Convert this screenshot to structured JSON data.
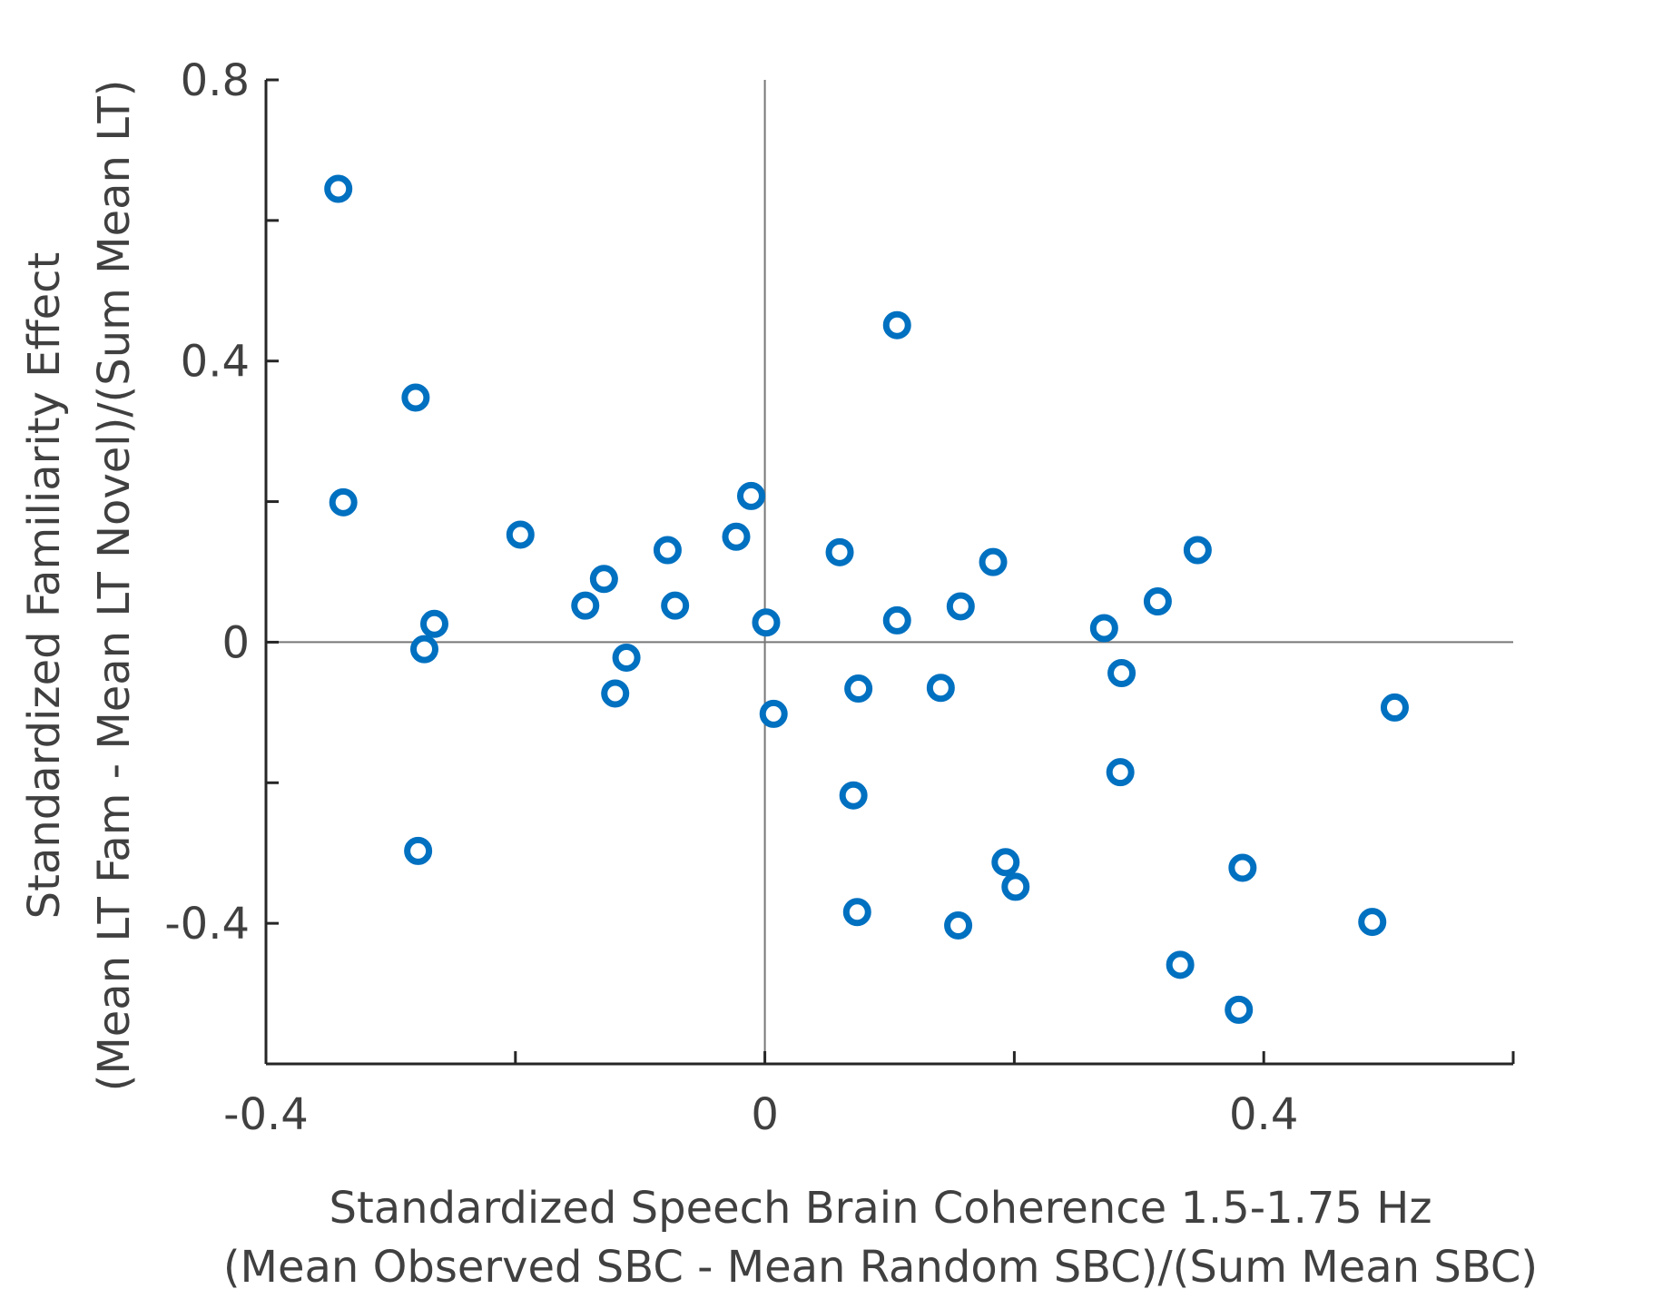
{
  "chart_data": {
    "type": "scatter",
    "xlabel": [
      "Standardized Speech Brain Coherence 1.5-1.75 Hz",
      "(Mean Observed SBC - Mean Random SBC)/(Sum Mean SBC)"
    ],
    "ylabel": [
      "Standardized Familiarity Effect",
      "(Mean LT Fam - Mean LT Novel)/(Sum Mean LT)"
    ],
    "xlim": [
      -0.4,
      0.6
    ],
    "ylim": [
      -0.6,
      0.8
    ],
    "xticks": [
      -0.4,
      -0.2,
      0,
      0.2,
      0.4,
      0.6
    ],
    "xtick_labels": [
      "-0.4",
      "",
      "0",
      "",
      "0.4",
      ""
    ],
    "yticks": [
      -0.6,
      -0.4,
      -0.2,
      0,
      0.2,
      0.4,
      0.6,
      0.8
    ],
    "ytick_labels": [
      "",
      "-0.4",
      "",
      "0",
      "",
      "0.4",
      "",
      "0.8"
    ],
    "reference_lines": {
      "x": 0,
      "y": 0
    },
    "marker": {
      "shape": "open-circle",
      "color": "#0070C0"
    },
    "grid": false,
    "legend": "none",
    "points": [
      {
        "x": -0.342,
        "y": 0.645
      },
      {
        "x": -0.28,
        "y": 0.348
      },
      {
        "x": -0.338,
        "y": 0.199
      },
      {
        "x": -0.196,
        "y": 0.153
      },
      {
        "x": -0.265,
        "y": 0.026
      },
      {
        "x": -0.273,
        "y": -0.01
      },
      {
        "x": -0.278,
        "y": -0.297
      },
      {
        "x": -0.144,
        "y": 0.052
      },
      {
        "x": -0.129,
        "y": 0.09
      },
      {
        "x": -0.111,
        "y": -0.022
      },
      {
        "x": -0.12,
        "y": -0.073
      },
      {
        "x": -0.078,
        "y": 0.131
      },
      {
        "x": -0.072,
        "y": 0.052
      },
      {
        "x": -0.023,
        "y": 0.15
      },
      {
        "x": -0.011,
        "y": 0.208
      },
      {
        "x": 0.001,
        "y": 0.028
      },
      {
        "x": 0.007,
        "y": -0.102
      },
      {
        "x": 0.06,
        "y": 0.128
      },
      {
        "x": 0.071,
        "y": -0.218
      },
      {
        "x": 0.075,
        "y": -0.066
      },
      {
        "x": 0.074,
        "y": -0.384
      },
      {
        "x": 0.106,
        "y": 0.451
      },
      {
        "x": 0.106,
        "y": 0.031
      },
      {
        "x": 0.141,
        "y": -0.065
      },
      {
        "x": 0.157,
        "y": 0.051
      },
      {
        "x": 0.155,
        "y": -0.403
      },
      {
        "x": 0.183,
        "y": 0.114
      },
      {
        "x": 0.193,
        "y": -0.313
      },
      {
        "x": 0.201,
        "y": -0.348
      },
      {
        "x": 0.272,
        "y": 0.02
      },
      {
        "x": 0.286,
        "y": -0.044
      },
      {
        "x": 0.285,
        "y": -0.185
      },
      {
        "x": 0.315,
        "y": 0.058
      },
      {
        "x": 0.347,
        "y": 0.131
      },
      {
        "x": 0.333,
        "y": -0.459
      },
      {
        "x": 0.383,
        "y": -0.321
      },
      {
        "x": 0.38,
        "y": -0.523
      },
      {
        "x": 0.487,
        "y": -0.398
      },
      {
        "x": 0.505,
        "y": -0.093
      }
    ]
  }
}
